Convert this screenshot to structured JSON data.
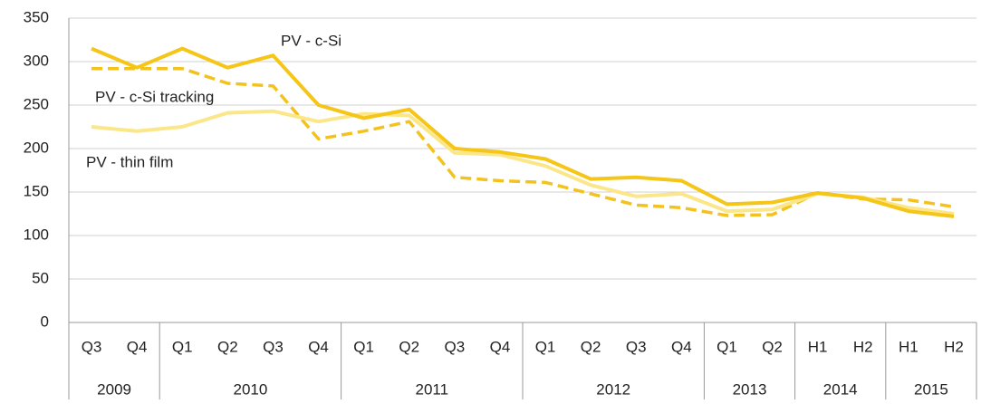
{
  "chart_data": {
    "type": "line",
    "categories": [
      "Q3",
      "Q4",
      "Q1",
      "Q2",
      "Q3",
      "Q4",
      "Q1",
      "Q2",
      "Q3",
      "Q4",
      "Q1",
      "Q2",
      "Q3",
      "Q4",
      "Q1",
      "Q2",
      "H1",
      "H2",
      "H1",
      "H2"
    ],
    "category_groups": [
      {
        "label": "2009",
        "span": 2
      },
      {
        "label": "2010",
        "span": 4
      },
      {
        "label": "2011",
        "span": 4
      },
      {
        "label": "2012",
        "span": 4
      },
      {
        "label": "2013",
        "span": 2
      },
      {
        "label": "2014",
        "span": 2
      },
      {
        "label": "2015",
        "span": 2
      }
    ],
    "series": [
      {
        "name": "PV - c-Si",
        "color": "#f5c518",
        "width": 4,
        "dash": "solid",
        "values": [
          315,
          293,
          315,
          293,
          307,
          250,
          235,
          245,
          200,
          196,
          188,
          165,
          167,
          163,
          136,
          138,
          149,
          143,
          128,
          122
        ]
      },
      {
        "name": "PV - c-Si tracking",
        "color": "#f3c21c",
        "width": 3.5,
        "dash": "dashed",
        "values": [
          292,
          292,
          292,
          275,
          272,
          211,
          220,
          231,
          167,
          163,
          161,
          148,
          135,
          132,
          123,
          124,
          149,
          142,
          141,
          133
        ]
      },
      {
        "name": "PV - thin film",
        "color": "#fbe78a",
        "width": 4,
        "dash": "solid",
        "values": [
          225,
          220,
          225,
          241,
          243,
          231,
          240,
          238,
          195,
          193,
          180,
          158,
          145,
          148,
          128,
          130,
          148,
          144,
          132,
          125
        ]
      }
    ],
    "ylim": [
      0,
      350
    ],
    "yticks": [
      0,
      50,
      100,
      150,
      200,
      250,
      300,
      350
    ],
    "grid": true
  }
}
